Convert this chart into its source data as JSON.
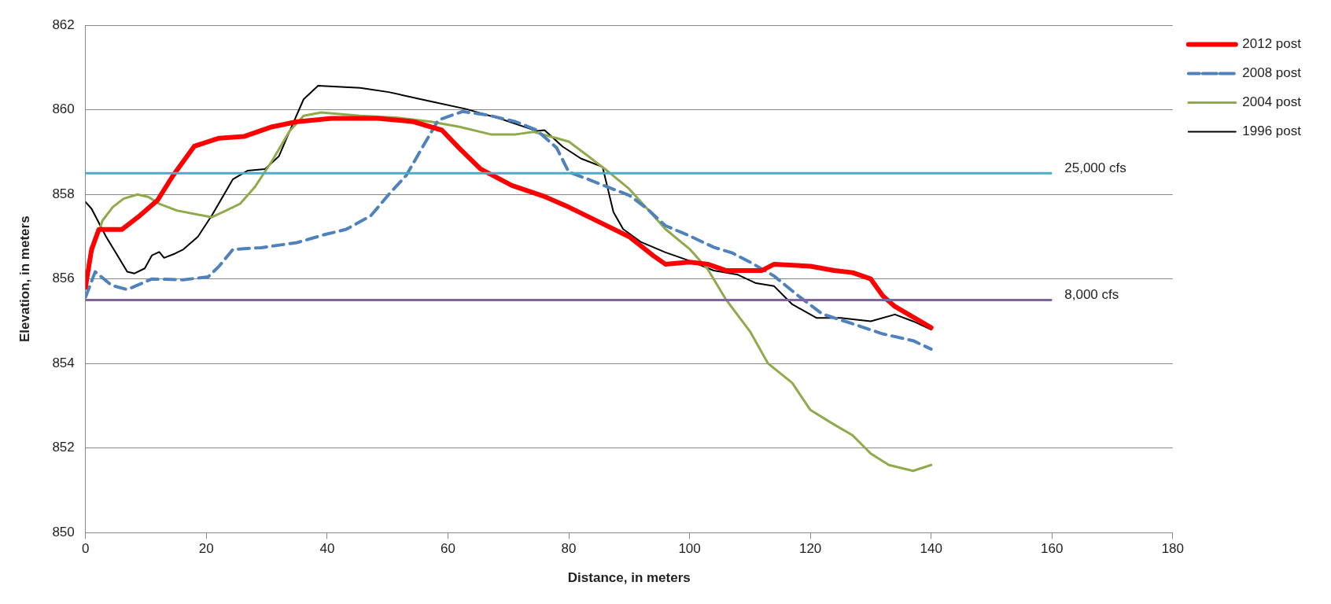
{
  "chart_data": {
    "type": "line",
    "xlabel": "Distance, in meters",
    "ylabel": "Elevation, in meters",
    "xlim": [
      0,
      180
    ],
    "xticks": [
      0,
      20,
      40,
      60,
      80,
      100,
      120,
      140,
      160,
      180
    ],
    "ylim": [
      850,
      862
    ],
    "yticks": [
      850,
      852,
      854,
      856,
      858,
      860,
      862
    ],
    "grid": "y",
    "legend": "right",
    "marker": "none",
    "series": [
      {
        "name": "2012 post",
        "color": "#ff0000",
        "x": [
          0,
          0.2,
          1,
          2.2,
          6,
          9,
          11.9,
          14.5,
          18,
          22.1,
          26.2,
          30.9,
          35,
          40.8,
          48.4,
          54.3,
          59,
          61.9,
          65.4,
          70.6,
          76,
          80,
          85,
          90,
          94,
          96,
          100,
          103,
          106,
          112,
          114,
          120,
          124,
          127,
          130,
          132,
          134,
          137,
          140
        ],
        "values": [
          855.8,
          856.0,
          856.7,
          857.17,
          857.17,
          857.5,
          857.86,
          858.45,
          859.14,
          859.33,
          859.37,
          859.6,
          859.72,
          859.8,
          859.8,
          859.72,
          859.52,
          859.09,
          858.6,
          858.21,
          857.95,
          857.7,
          857.35,
          857.0,
          856.55,
          856.35,
          856.4,
          856.35,
          856.2,
          856.2,
          856.35,
          856.3,
          856.2,
          856.15,
          856.0,
          855.6,
          855.35,
          855.1,
          854.85
        ]
      },
      {
        "name": "2008 post",
        "color": "#4f81bd",
        "line_style": "dashed",
        "x": [
          0,
          1.6,
          4.3,
          6.9,
          11,
          16.2,
          20.3,
          22.1,
          24.4,
          29.1,
          35,
          39.6,
          43.1,
          47.2,
          50.2,
          53.1,
          56,
          58.4,
          62.4,
          66.5,
          71.2,
          74.7,
          78,
          80,
          83,
          86,
          90,
          93,
          96,
          100,
          104,
          107,
          110,
          114,
          118,
          122,
          127,
          132,
          137,
          140
        ],
        "values": [
          855.57,
          856.17,
          855.85,
          855.75,
          856.0,
          855.98,
          856.05,
          856.3,
          856.7,
          856.74,
          856.86,
          857.05,
          857.17,
          857.49,
          858.0,
          858.45,
          859.17,
          859.76,
          859.96,
          859.88,
          859.72,
          859.52,
          859.1,
          858.53,
          858.37,
          858.2,
          857.98,
          857.66,
          857.26,
          857.02,
          856.75,
          856.62,
          856.4,
          856.07,
          855.6,
          855.17,
          854.94,
          854.7,
          854.54,
          854.34
        ]
      },
      {
        "name": "2004 post",
        "color": "#8faa4b",
        "x": [
          0,
          1,
          2.8,
          4.5,
          6.3,
          8.6,
          10.4,
          12.2,
          15.1,
          18,
          20.9,
          23.3,
          25.6,
          28,
          30.9,
          33.8,
          36.1,
          39,
          45.5,
          51.3,
          57.2,
          61.9,
          67.1,
          71.2,
          74.1,
          78,
          80,
          83,
          86,
          90,
          93,
          96,
          100,
          103,
          106,
          110,
          113,
          117,
          120,
          124,
          127,
          130,
          133,
          137,
          140
        ],
        "values": [
          855.77,
          856.6,
          857.38,
          857.7,
          857.9,
          858.0,
          857.94,
          857.78,
          857.62,
          857.54,
          857.46,
          857.62,
          857.78,
          858.17,
          858.8,
          859.5,
          859.86,
          859.94,
          859.86,
          859.82,
          859.72,
          859.6,
          859.42,
          859.42,
          859.48,
          859.33,
          859.25,
          858.93,
          858.6,
          858.13,
          857.66,
          857.18,
          856.71,
          856.23,
          855.52,
          854.76,
          854.0,
          853.54,
          852.9,
          852.55,
          852.3,
          851.87,
          851.6,
          851.46,
          851.6
        ]
      },
      {
        "name": "1996 post",
        "color": "#000000",
        "x": [
          0,
          1,
          3.4,
          5.1,
          6.9,
          8.1,
          9.8,
          11,
          12.2,
          13,
          14.8,
          16.2,
          18.6,
          20.9,
          24.4,
          26.8,
          29.7,
          32,
          33.8,
          36.1,
          38.5,
          45.5,
          50.2,
          57.2,
          63,
          68.9,
          74.7,
          76,
          79,
          82,
          85.6,
          87.4,
          89,
          92,
          96,
          100,
          104,
          108,
          111,
          114,
          117,
          121,
          125,
          130,
          134,
          137,
          140
        ],
        "values": [
          857.82,
          857.66,
          857.0,
          856.6,
          856.17,
          856.13,
          856.25,
          856.56,
          856.64,
          856.5,
          856.6,
          856.7,
          857.0,
          857.5,
          858.36,
          858.56,
          858.6,
          858.9,
          859.5,
          860.25,
          860.57,
          860.52,
          860.42,
          860.2,
          860.02,
          859.78,
          859.5,
          859.52,
          859.13,
          858.85,
          858.65,
          857.58,
          857.18,
          856.87,
          856.63,
          856.43,
          856.2,
          856.1,
          855.9,
          855.83,
          855.4,
          855.08,
          855.08,
          855.0,
          855.16,
          855.0,
          854.8
        ]
      }
    ],
    "ref_lines": [
      {
        "axis": "y",
        "value": 858.5,
        "label": "25,000 cfs",
        "color": "#4bacc6"
      },
      {
        "axis": "y",
        "value": 855.5,
        "label": "8,000 cfs",
        "color": "#8064a2"
      }
    ]
  }
}
